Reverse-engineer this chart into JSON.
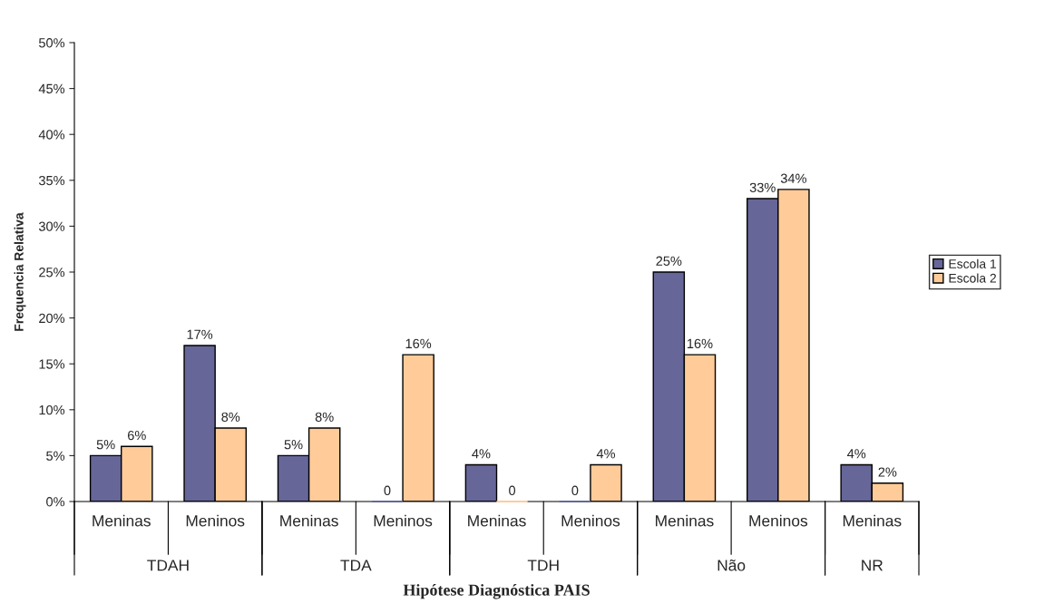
{
  "chart_data": {
    "type": "bar",
    "xlabel": "Hipótese Diagnóstica PAIS",
    "ylabel": "Frequencia Relativa",
    "categories": [
      "Meninas",
      "Meninos",
      "Meninas",
      "Meninos",
      "Meninas",
      "Meninos",
      "Meninas",
      "Meninos",
      "Meninas"
    ],
    "annotations": [
      "TDAH",
      "TDA",
      "TDH",
      "Não",
      "NR"
    ],
    "series": [
      {
        "name": "Escola 1",
        "color": "#666699",
        "values": [
          5,
          17,
          5,
          0,
          4,
          0,
          25,
          33,
          4
        ],
        "value_labels": [
          "5%",
          "17%",
          "5%",
          "0",
          "4%",
          "0",
          "25%",
          "33%",
          "4%"
        ]
      },
      {
        "name": "Escola 2",
        "color": "#ffcc99",
        "values": [
          6,
          8,
          8,
          16,
          0,
          4,
          16,
          34,
          2
        ],
        "value_labels": [
          "6%",
          "8%",
          "8%",
          "16%",
          "0",
          "4%",
          "16%",
          "34%",
          "2%"
        ]
      }
    ],
    "ylim": [
      0,
      50
    ],
    "yticks": [
      {
        "value": 0,
        "label": "0%"
      },
      {
        "value": 5,
        "label": "5%"
      },
      {
        "value": 10,
        "label": "10%"
      },
      {
        "value": 15,
        "label": "15%"
      },
      {
        "value": 20,
        "label": "20%"
      },
      {
        "value": 25,
        "label": "25%"
      },
      {
        "value": 30,
        "label": "30%"
      },
      {
        "value": 35,
        "label": "35%"
      },
      {
        "value": 40,
        "label": "40%"
      },
      {
        "value": 45,
        "label": "45%"
      },
      {
        "value": 50,
        "label": "50%"
      }
    ],
    "grid": false,
    "legend": "right"
  }
}
